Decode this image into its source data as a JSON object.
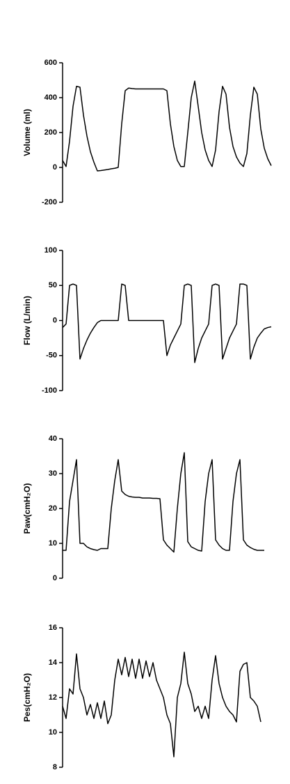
{
  "chart_data": [
    {
      "type": "line",
      "ylabel": "Volume (ml)",
      "ylim": [
        -200,
        600
      ],
      "yticks": [
        -200,
        0,
        200,
        400,
        600
      ],
      "color": "#000000",
      "values": [
        40,
        5,
        150,
        350,
        465,
        460,
        300,
        180,
        90,
        30,
        -20,
        -18,
        -15,
        -12,
        -8,
        -5,
        0,
        250,
        440,
        455,
        452,
        450,
        450,
        450,
        450,
        450,
        450,
        450,
        450,
        450,
        440,
        250,
        120,
        40,
        5,
        5,
        200,
        400,
        495,
        350,
        200,
        100,
        40,
        5,
        100,
        320,
        465,
        420,
        230,
        120,
        60,
        25,
        5,
        80,
        300,
        460,
        420,
        220,
        110,
        50,
        10
      ]
    },
    {
      "type": "line",
      "ylabel": "Flow (L/min)",
      "ylim": [
        -100,
        100
      ],
      "yticks": [
        -100,
        -50,
        0,
        50,
        100
      ],
      "color": "#000000",
      "values": [
        -10,
        -5,
        50,
        52,
        50,
        -55,
        -40,
        -28,
        -18,
        -10,
        -3,
        0,
        0,
        0,
        0,
        0,
        0,
        52,
        50,
        0,
        0,
        0,
        0,
        0,
        0,
        0,
        0,
        0,
        0,
        0,
        -50,
        -35,
        -25,
        -15,
        -5,
        50,
        52,
        50,
        -60,
        -40,
        -25,
        -15,
        -5,
        50,
        52,
        50,
        -55,
        -40,
        -25,
        -15,
        -5,
        52,
        52,
        50,
        -55,
        -38,
        -25,
        -18,
        -12,
        -10,
        -9
      ]
    },
    {
      "type": "line",
      "ylabel": "Paw(cmH₂O)",
      "ylim": [
        0,
        40
      ],
      "yticks": [
        0,
        10,
        20,
        30,
        40
      ],
      "color": "#000000",
      "values": [
        8,
        8,
        22,
        28,
        34,
        10,
        10,
        9,
        8.5,
        8.2,
        8,
        8.5,
        8.5,
        8.5,
        20,
        28,
        34,
        25,
        24,
        23.5,
        23.3,
        23.2,
        23.2,
        23,
        23,
        23,
        22.9,
        22.9,
        22.8,
        11,
        9.5,
        8.5,
        7.5,
        20,
        30,
        36,
        10.5,
        9,
        8.5,
        8,
        7.8,
        22,
        30,
        34,
        11,
        9.5,
        8.5,
        8,
        8,
        22,
        30,
        34,
        11,
        9.5,
        8.8,
        8.3,
        8,
        8,
        8
      ]
    },
    {
      "type": "line",
      "ylabel": "Pes(cmH₂O)",
      "ylim": [
        8,
        16
      ],
      "yticks": [
        8,
        10,
        12,
        14,
        16
      ],
      "color": "#000000",
      "values": [
        11.5,
        10.8,
        12.5,
        12.2,
        14.5,
        12.5,
        12,
        11,
        11.6,
        10.8,
        11.7,
        10.8,
        11.8,
        10.5,
        11,
        13,
        14.2,
        13.3,
        14.3,
        13.2,
        14.2,
        13.1,
        14.2,
        13.1,
        14.1,
        13.2,
        14,
        13,
        12.5,
        12,
        11,
        10.5,
        8.6,
        12,
        12.8,
        14.6,
        12.8,
        12.2,
        11.2,
        11.5,
        10.8,
        11.5,
        10.8,
        13,
        14.4,
        12.8,
        12,
        11.5,
        11.2,
        11,
        10.6,
        13.5,
        13.9,
        14,
        12,
        11.8,
        11.5,
        10.6
      ]
    }
  ]
}
